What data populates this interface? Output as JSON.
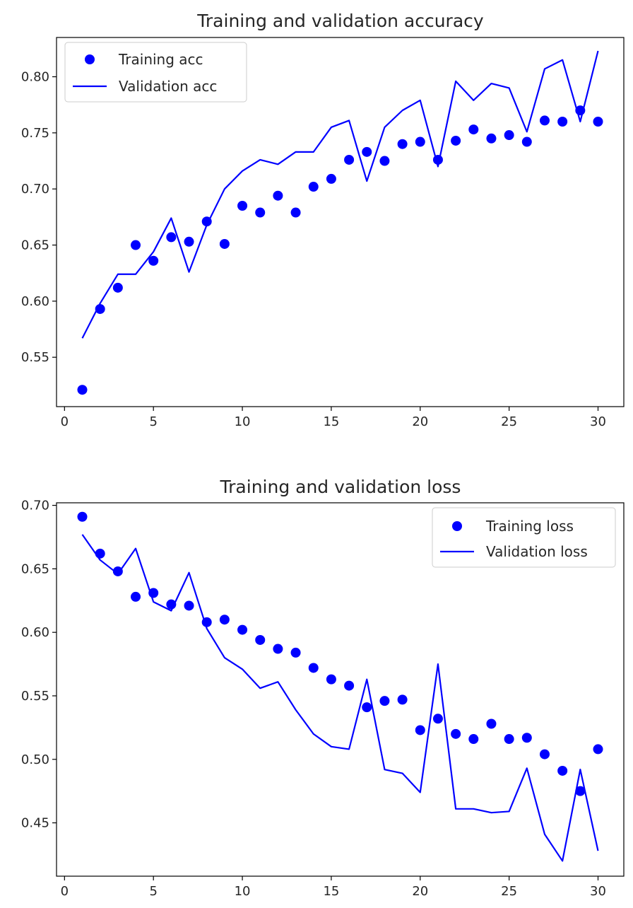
{
  "chart_data": [
    {
      "type": "line",
      "title": "Training and validation accuracy",
      "xlabel": "",
      "ylabel": "",
      "xlim": [
        -0.45,
        31.45
      ],
      "ylim": [
        0.506,
        0.835
      ],
      "xticks": [
        0,
        5,
        10,
        15,
        20,
        25,
        30
      ],
      "yticks": [
        0.55,
        0.6,
        0.65,
        0.7,
        0.75,
        0.8
      ],
      "ytick_labels": [
        "0.55",
        "0.60",
        "0.65",
        "0.70",
        "0.75",
        "0.80"
      ],
      "grid": false,
      "legend_position": "top-left",
      "x": [
        1,
        2,
        3,
        4,
        5,
        6,
        7,
        8,
        9,
        10,
        11,
        12,
        13,
        14,
        15,
        16,
        17,
        18,
        19,
        20,
        21,
        22,
        23,
        24,
        25,
        26,
        27,
        28,
        29,
        30
      ],
      "series": [
        {
          "name": "Training acc",
          "style": "markers",
          "color": "#0000ff",
          "values": [
            0.521,
            0.593,
            0.612,
            0.65,
            0.636,
            0.657,
            0.653,
            0.671,
            0.651,
            0.685,
            0.679,
            0.694,
            0.679,
            0.702,
            0.709,
            0.726,
            0.733,
            0.725,
            0.74,
            0.742,
            0.726,
            0.743,
            0.753,
            0.745,
            0.748,
            0.742,
            0.761,
            0.76,
            0.77,
            0.76
          ]
        },
        {
          "name": "Validation acc",
          "style": "line",
          "color": "#0000ff",
          "values": [
            0.567,
            0.598,
            0.624,
            0.624,
            0.644,
            0.674,
            0.626,
            0.668,
            0.7,
            0.716,
            0.726,
            0.722,
            0.733,
            0.733,
            0.755,
            0.761,
            0.707,
            0.755,
            0.77,
            0.779,
            0.72,
            0.796,
            0.779,
            0.794,
            0.79,
            0.751,
            0.807,
            0.815,
            0.76,
            0.823
          ]
        }
      ]
    },
    {
      "type": "line",
      "title": "Training and validation loss",
      "xlabel": "",
      "ylabel": "",
      "xlim": [
        -0.45,
        31.45
      ],
      "ylim": [
        0.408,
        0.702
      ],
      "xticks": [
        0,
        5,
        10,
        15,
        20,
        25,
        30
      ],
      "yticks": [
        0.45,
        0.5,
        0.55,
        0.6,
        0.65,
        0.7
      ],
      "ytick_labels": [
        "0.45",
        "0.50",
        "0.55",
        "0.60",
        "0.65",
        "0.70"
      ],
      "grid": false,
      "legend_position": "top-right",
      "x": [
        1,
        2,
        3,
        4,
        5,
        6,
        7,
        8,
        9,
        10,
        11,
        12,
        13,
        14,
        15,
        16,
        17,
        18,
        19,
        20,
        21,
        22,
        23,
        24,
        25,
        26,
        27,
        28,
        29,
        30
      ],
      "series": [
        {
          "name": "Training loss",
          "style": "markers",
          "color": "#0000ff",
          "values": [
            0.691,
            0.662,
            0.648,
            0.628,
            0.631,
            0.622,
            0.621,
            0.608,
            0.61,
            0.602,
            0.594,
            0.587,
            0.584,
            0.572,
            0.563,
            0.558,
            0.541,
            0.546,
            0.547,
            0.523,
            0.532,
            0.52,
            0.516,
            0.528,
            0.516,
            0.517,
            0.504,
            0.491,
            0.475,
            0.508
          ]
        },
        {
          "name": "Validation loss",
          "style": "line",
          "color": "#0000ff",
          "values": [
            0.677,
            0.657,
            0.646,
            0.666,
            0.624,
            0.617,
            0.647,
            0.603,
            0.58,
            0.571,
            0.556,
            0.561,
            0.539,
            0.52,
            0.51,
            0.508,
            0.563,
            0.492,
            0.489,
            0.474,
            0.575,
            0.461,
            0.461,
            0.458,
            0.459,
            0.493,
            0.441,
            0.42,
            0.492,
            0.428
          ]
        }
      ]
    }
  ]
}
